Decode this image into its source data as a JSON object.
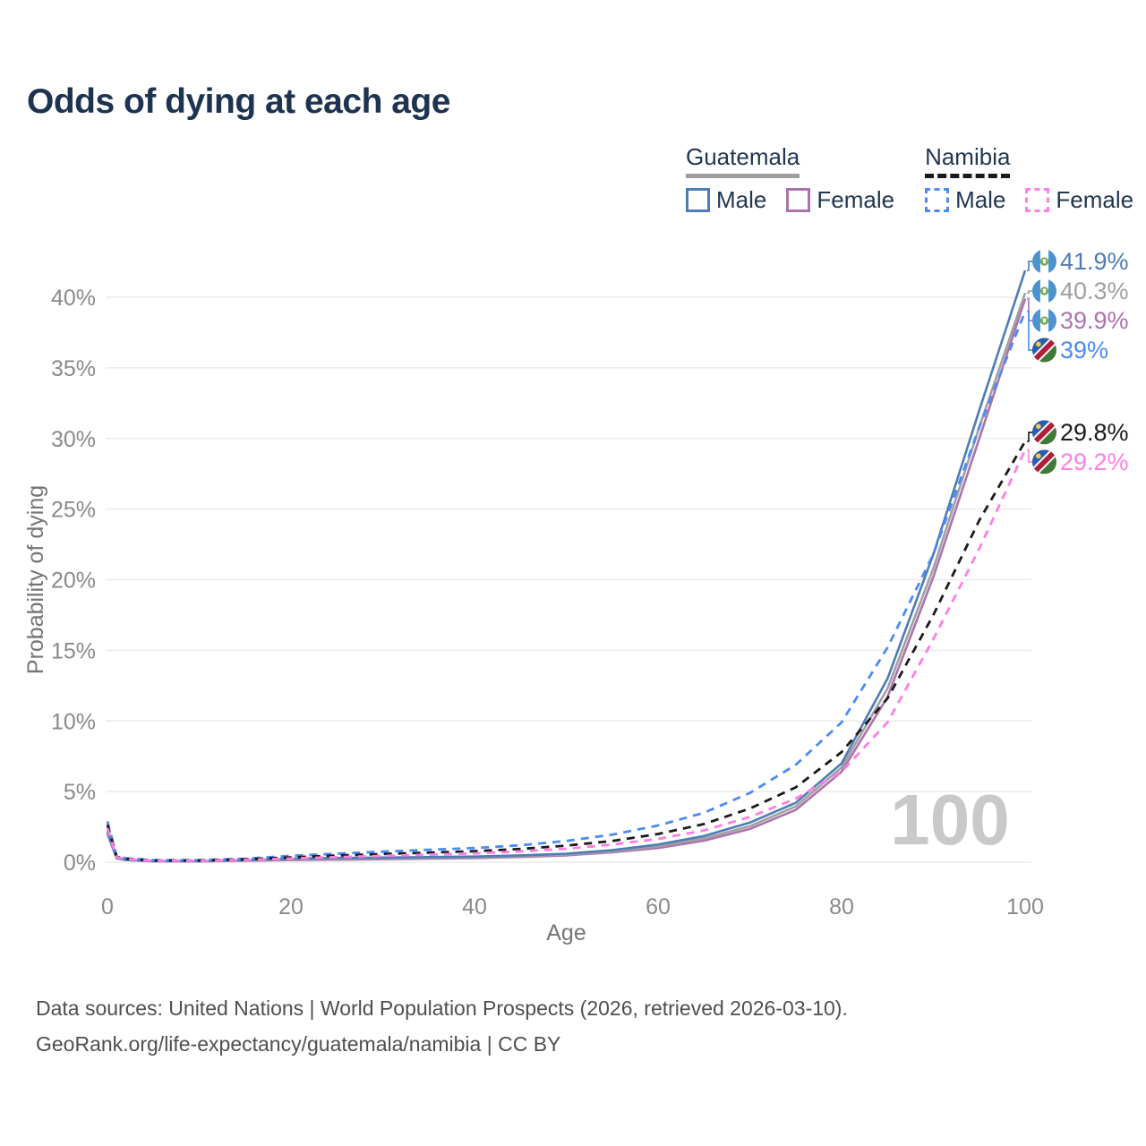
{
  "title": "Odds of dying at each age",
  "legend": {
    "groups": [
      {
        "country": "Guatemala",
        "line_style": "solid",
        "underline_color": "#9e9e9e",
        "items": [
          {
            "label": "Male",
            "color": "#4d7db5",
            "dashed": false
          },
          {
            "label": "Female",
            "color": "#ad72ad",
            "dashed": false
          }
        ]
      },
      {
        "country": "Namibia",
        "line_style": "dashed",
        "underline_color": "#1a1a1a",
        "items": [
          {
            "label": "Male",
            "color": "#4b8bf7",
            "dashed": true
          },
          {
            "label": "Female",
            "color": "#ff7ee3",
            "dashed": true
          }
        ]
      }
    ]
  },
  "chart_data": {
    "type": "line",
    "title": "Odds of dying at each age",
    "xlabel": "Age",
    "ylabel": "Probability of dying",
    "xlim": [
      0,
      100
    ],
    "ylim": [
      0,
      44
    ],
    "x_ticks": [
      0,
      20,
      40,
      60,
      80,
      100
    ],
    "y_ticks": [
      0,
      5,
      10,
      15,
      20,
      25,
      30,
      35,
      40
    ],
    "y_tick_suffix": "%",
    "grid": "horizontal",
    "gridline_color": "#ebebeb",
    "watermark": "100",
    "watermark_color": "#c9c9c9",
    "ages": [
      0,
      1,
      2,
      5,
      10,
      15,
      20,
      25,
      30,
      35,
      40,
      45,
      50,
      55,
      60,
      65,
      70,
      75,
      80,
      85,
      90,
      95,
      100
    ],
    "series": [
      {
        "name": "Guatemala Male",
        "flag": "guatemala",
        "color": "#4d7db5",
        "dashed": false,
        "end_label": "41.9%",
        "values": [
          2.2,
          0.3,
          0.18,
          0.08,
          0.08,
          0.15,
          0.25,
          0.3,
          0.33,
          0.36,
          0.4,
          0.48,
          0.6,
          0.85,
          1.25,
          1.85,
          2.8,
          4.2,
          7.0,
          13.0,
          21.8,
          32.0,
          41.9
        ]
      },
      {
        "name": "Guatemala Overall",
        "flag": "guatemala",
        "color": "#a0a0a0",
        "dashed": false,
        "end_label": "40.3%",
        "values": [
          2.1,
          0.28,
          0.16,
          0.07,
          0.07,
          0.12,
          0.2,
          0.24,
          0.27,
          0.3,
          0.34,
          0.42,
          0.54,
          0.77,
          1.12,
          1.68,
          2.55,
          3.95,
          6.7,
          12.3,
          20.8,
          30.8,
          40.3
        ]
      },
      {
        "name": "Guatemala Female",
        "flag": "guatemala",
        "color": "#ad72ad",
        "dashed": false,
        "end_label": "39.9%",
        "values": [
          2.0,
          0.26,
          0.15,
          0.06,
          0.06,
          0.1,
          0.15,
          0.18,
          0.21,
          0.25,
          0.29,
          0.37,
          0.48,
          0.7,
          1.0,
          1.52,
          2.35,
          3.7,
          6.4,
          11.7,
          20.2,
          30.0,
          39.9
        ]
      },
      {
        "name": "Namibia Male",
        "flag": "namibia",
        "color": "#4b8bf7",
        "dashed": true,
        "end_label": "39%",
        "values": [
          2.9,
          0.42,
          0.28,
          0.15,
          0.15,
          0.25,
          0.45,
          0.6,
          0.75,
          0.88,
          1.0,
          1.2,
          1.5,
          1.95,
          2.6,
          3.5,
          4.9,
          6.9,
          9.9,
          15.2,
          21.8,
          30.8,
          39.0
        ]
      },
      {
        "name": "Namibia Overall",
        "flag": "namibia",
        "color": "#1a1a1a",
        "dashed": true,
        "end_label": "29.8%",
        "values": [
          2.65,
          0.38,
          0.24,
          0.12,
          0.12,
          0.2,
          0.34,
          0.47,
          0.58,
          0.68,
          0.78,
          0.94,
          1.17,
          1.5,
          2.0,
          2.7,
          3.8,
          5.3,
          7.8,
          11.6,
          17.5,
          24.2,
          29.8
        ]
      },
      {
        "name": "Namibia Female",
        "flag": "namibia",
        "color": "#ff7ee3",
        "dashed": true,
        "end_label": "29.2%",
        "values": [
          2.4,
          0.35,
          0.22,
          0.1,
          0.1,
          0.16,
          0.26,
          0.36,
          0.45,
          0.53,
          0.62,
          0.76,
          0.95,
          1.25,
          1.65,
          2.25,
          3.2,
          4.5,
          6.4,
          9.9,
          15.8,
          22.2,
          29.2
        ]
      }
    ]
  },
  "footer": {
    "line1": "Data sources: United Nations | World Population Prospects (2026, retrieved 2026-03-10).",
    "line2": "GeoRank.org/life-expectancy/guatemala/namibia | CC BY"
  }
}
